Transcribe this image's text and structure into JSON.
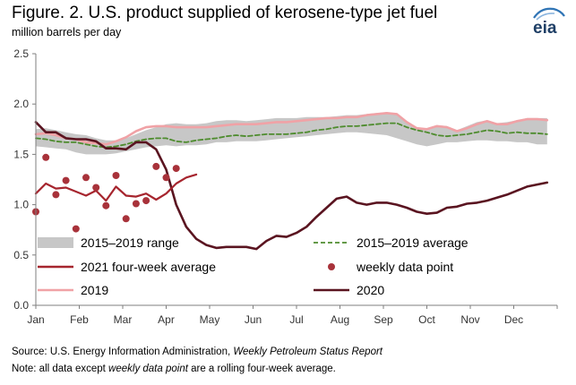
{
  "title": "Figure. 2. U.S. product supplied of kerosene-type jet fuel",
  "subtitle": "million barrels per day",
  "logo_text": "eia",
  "source": {
    "prefix": "Source: U.S. Energy Information Administration, ",
    "report": "Weekly Petroleum Status Report"
  },
  "note": {
    "prefix": "Note: all data except ",
    "emph": "weekly data point",
    "suffix": " are a rolling four-week average."
  },
  "colors": {
    "range": "#c7c7c7",
    "average": "#4e8c2e",
    "avg2021": "#a6252e",
    "points": "#a8323a",
    "y2019": "#f0a2a6",
    "y2020": "#5a1420",
    "axis": "#7f7f7f"
  },
  "chart_data": {
    "type": "line",
    "ylim": [
      0,
      2.5
    ],
    "yticks": [
      0.0,
      0.5,
      1.0,
      1.5,
      2.0,
      2.5
    ],
    "ytick_labels": [
      "0.0",
      "0.5",
      "1.0",
      "1.5",
      "2.0",
      "2.5"
    ],
    "xlim": [
      0,
      52
    ],
    "months": [
      "Jan",
      "Feb",
      "Mar",
      "Apr",
      "May",
      "Jun",
      "Jul",
      "Aug",
      "Sep",
      "Oct",
      "Nov",
      "Dec"
    ],
    "grid": false,
    "legend": [
      {
        "key": "range",
        "label": "2015–2019 range",
        "style": "band"
      },
      {
        "key": "average",
        "label": "2015–2019 average",
        "style": "dashed"
      },
      {
        "key": "avg2021",
        "label": "2021 four-week average",
        "style": "line"
      },
      {
        "key": "points",
        "label": "weekly data point",
        "style": "dot"
      },
      {
        "key": "y2019",
        "label": "2019",
        "style": "line"
      },
      {
        "key": "y2020",
        "label": "2020",
        "style": "line"
      }
    ],
    "series": [
      {
        "key": "range",
        "name": "2015–2019 range",
        "x_start": 0,
        "low": [
          1.58,
          1.57,
          1.56,
          1.55,
          1.52,
          1.5,
          1.5,
          1.5,
          1.51,
          1.53,
          1.55,
          1.57,
          1.58,
          1.59,
          1.58,
          1.59,
          1.59,
          1.6,
          1.62,
          1.62,
          1.63,
          1.63,
          1.63,
          1.64,
          1.65,
          1.66,
          1.67,
          1.68,
          1.69,
          1.7,
          1.71,
          1.72,
          1.72,
          1.71,
          1.7,
          1.69,
          1.66,
          1.63,
          1.6,
          1.58,
          1.6,
          1.62,
          1.62,
          1.63,
          1.64,
          1.64,
          1.63,
          1.63,
          1.62,
          1.62,
          1.6,
          1.6
        ],
        "high": [
          1.75,
          1.76,
          1.74,
          1.72,
          1.7,
          1.69,
          1.66,
          1.64,
          1.64,
          1.66,
          1.7,
          1.74,
          1.77,
          1.8,
          1.81,
          1.8,
          1.8,
          1.81,
          1.83,
          1.84,
          1.84,
          1.83,
          1.84,
          1.85,
          1.86,
          1.86,
          1.86,
          1.87,
          1.87,
          1.87,
          1.88,
          1.89,
          1.89,
          1.9,
          1.91,
          1.92,
          1.9,
          1.82,
          1.76,
          1.76,
          1.79,
          1.78,
          1.74,
          1.78,
          1.82,
          1.84,
          1.81,
          1.82,
          1.84,
          1.86,
          1.86,
          1.86
        ]
      },
      {
        "key": "average",
        "name": "2015–2019 average",
        "x_start": 0,
        "values": [
          1.66,
          1.65,
          1.63,
          1.62,
          1.62,
          1.6,
          1.58,
          1.57,
          1.58,
          1.6,
          1.63,
          1.65,
          1.66,
          1.66,
          1.63,
          1.62,
          1.64,
          1.65,
          1.66,
          1.68,
          1.69,
          1.68,
          1.69,
          1.7,
          1.7,
          1.7,
          1.71,
          1.72,
          1.74,
          1.75,
          1.77,
          1.78,
          1.78,
          1.79,
          1.8,
          1.81,
          1.81,
          1.77,
          1.74,
          1.72,
          1.69,
          1.68,
          1.69,
          1.7,
          1.72,
          1.74,
          1.73,
          1.71,
          1.72,
          1.71,
          1.71,
          1.7
        ]
      },
      {
        "key": "y2019",
        "name": "2019",
        "x_start": 0,
        "values": [
          1.7,
          1.71,
          1.69,
          1.66,
          1.65,
          1.62,
          1.61,
          1.6,
          1.63,
          1.67,
          1.73,
          1.77,
          1.78,
          1.78,
          1.77,
          1.77,
          1.77,
          1.77,
          1.78,
          1.79,
          1.8,
          1.8,
          1.8,
          1.81,
          1.82,
          1.82,
          1.83,
          1.84,
          1.85,
          1.86,
          1.86,
          1.87,
          1.87,
          1.89,
          1.9,
          1.91,
          1.9,
          1.82,
          1.76,
          1.75,
          1.78,
          1.77,
          1.73,
          1.76,
          1.8,
          1.83,
          1.8,
          1.8,
          1.83,
          1.85,
          1.85,
          1.84
        ]
      },
      {
        "key": "y2020",
        "name": "2020",
        "x_start": 0,
        "values": [
          1.82,
          1.72,
          1.72,
          1.66,
          1.65,
          1.65,
          1.63,
          1.56,
          1.56,
          1.55,
          1.62,
          1.62,
          1.55,
          1.35,
          1.0,
          0.78,
          0.66,
          0.6,
          0.57,
          0.58,
          0.58,
          0.58,
          0.56,
          0.64,
          0.69,
          0.68,
          0.72,
          0.78,
          0.88,
          0.97,
          1.06,
          1.08,
          1.02,
          1.0,
          1.02,
          1.02,
          1.0,
          0.97,
          0.93,
          0.91,
          0.92,
          0.97,
          0.98,
          1.01,
          1.02,
          1.04,
          1.07,
          1.1,
          1.14,
          1.18,
          1.2,
          1.22
        ]
      },
      {
        "key": "avg2021",
        "name": "2021 four-week average",
        "x_start": 0,
        "values": [
          1.11,
          1.21,
          1.16,
          1.17,
          1.13,
          1.09,
          1.14,
          1.04,
          1.18,
          1.09,
          1.08,
          1.11,
          1.05,
          1.11,
          1.21,
          1.27,
          1.3
        ]
      },
      {
        "key": "points",
        "name": "weekly data point",
        "x_start": 0,
        "values": [
          0.93,
          1.47,
          1.1,
          1.24,
          0.76,
          1.27,
          1.17,
          0.99,
          1.29,
          0.86,
          1.01,
          1.04,
          1.38,
          1.27,
          1.36
        ]
      }
    ]
  }
}
